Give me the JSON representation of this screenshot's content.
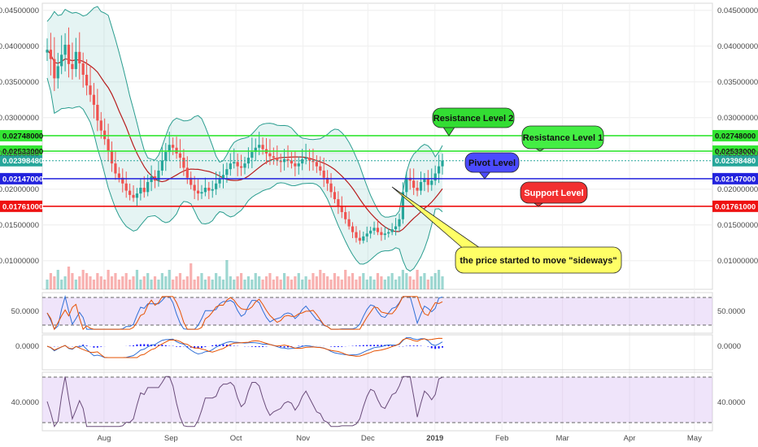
{
  "chart_data": {
    "type": "candlestick",
    "y_axis": {
      "range": [
        0.006,
        0.046
      ],
      "ticks": [
        "0.04500000",
        "0.04000000",
        "0.03500000",
        "0.03000000",
        "0.02500000",
        "0.02000000",
        "0.01500000",
        "0.01000000"
      ]
    },
    "x_axis": {
      "range_days": [
        0,
        200
      ],
      "months": [
        {
          "label": "Aug",
          "day": 12
        },
        {
          "label": "Sep",
          "day": 43
        },
        {
          "label": "Oct",
          "day": 73
        },
        {
          "label": "Nov",
          "day": 104
        },
        {
          "label": "Dec",
          "day": 134
        },
        {
          "label": "2019",
          "day": 165
        },
        {
          "label": "Feb",
          "day": 196
        },
        {
          "label": "Mar",
          "day": 224
        },
        {
          "label": "Apr",
          "day": 255
        },
        {
          "label": "May",
          "day": 285
        }
      ]
    },
    "levels": [
      {
        "name": "Resistance Level 2",
        "value": 0.02748,
        "label": "0.02748000",
        "color": "#33e633",
        "bubble": "Resistance Level 2"
      },
      {
        "name": "Resistance Level 1",
        "value": 0.02533,
        "label": "0.02533000",
        "color": "#33e633",
        "bubble": "Resistance Level 1"
      },
      {
        "name": "Last price",
        "value": 0.0239848,
        "label": "0.02398480",
        "color": "#26a69a",
        "bubble": ""
      },
      {
        "name": "Pivot Level",
        "value": 0.02147,
        "label": "0.02147000",
        "color": "#2222dd",
        "bubble": "Pivot Level"
      },
      {
        "name": "Support Level",
        "value": 0.01761,
        "label": "0.01761000",
        "color": "#ee1111",
        "bubble": "Support Level"
      }
    ],
    "annotation": "the price started to move \"sideways\"",
    "price_series": [
      0.0395,
      0.0382,
      0.0355,
      0.0372,
      0.0388,
      0.0402,
      0.0375,
      0.0368,
      0.0392,
      0.0376,
      0.036,
      0.0345,
      0.0332,
      0.0318,
      0.0296,
      0.0282,
      0.027,
      0.0254,
      0.0236,
      0.0222,
      0.0216,
      0.0208,
      0.0198,
      0.0192,
      0.0188,
      0.0194,
      0.0202,
      0.0196,
      0.021,
      0.0218,
      0.0212,
      0.0226,
      0.024,
      0.0252,
      0.0262,
      0.0258,
      0.025,
      0.0244,
      0.023,
      0.0216,
      0.0206,
      0.0198,
      0.0194,
      0.0196,
      0.0202,
      0.0198,
      0.02,
      0.0208,
      0.0214,
      0.022,
      0.0228,
      0.0236,
      0.0238,
      0.0232,
      0.023,
      0.0236,
      0.0244,
      0.0252,
      0.0258,
      0.0262,
      0.0256,
      0.025,
      0.0246,
      0.0244,
      0.024,
      0.0238,
      0.0242,
      0.024,
      0.0236,
      0.0232,
      0.0236,
      0.0242,
      0.0244,
      0.024,
      0.0238,
      0.0232,
      0.0226,
      0.0216,
      0.0208,
      0.0196,
      0.0186,
      0.0176,
      0.0168,
      0.0158,
      0.0148,
      0.014,
      0.0132,
      0.0128,
      0.0134,
      0.0138,
      0.0142,
      0.0146,
      0.014,
      0.0136,
      0.0138,
      0.014,
      0.0144,
      0.0148,
      0.0158,
      0.0196,
      0.0216,
      0.0212,
      0.0202,
      0.0198,
      0.021,
      0.0214,
      0.0206,
      0.0212,
      0.0222,
      0.0232,
      0.024
    ],
    "volume_series": [
      3,
      5,
      4,
      6,
      3,
      4,
      7,
      5,
      3,
      4,
      6,
      5,
      4,
      3,
      5,
      4,
      3,
      6,
      4,
      5,
      3,
      4,
      5,
      3,
      4,
      6,
      3,
      4,
      5,
      3,
      4,
      3,
      5,
      4,
      6,
      3,
      4,
      5,
      3,
      4,
      8,
      3,
      4,
      5,
      3,
      4,
      3,
      5,
      4,
      3,
      9,
      4,
      3,
      4,
      5,
      3,
      4,
      3,
      5,
      4,
      3,
      4,
      5,
      3,
      4,
      3,
      5,
      4,
      3,
      4,
      5,
      3,
      4,
      3,
      5,
      4,
      6,
      5,
      4,
      3,
      5,
      4,
      3,
      6,
      4,
      5,
      3,
      4,
      5,
      3,
      4,
      3,
      5,
      4,
      3,
      4,
      5,
      3,
      4,
      6,
      5,
      4,
      3,
      6,
      4,
      5,
      3,
      4,
      5,
      6,
      4
    ],
    "stoch_axis_label": "50.0000",
    "macd_axis_label": "0.0000",
    "rsi_axis_label": "40.0000"
  }
}
